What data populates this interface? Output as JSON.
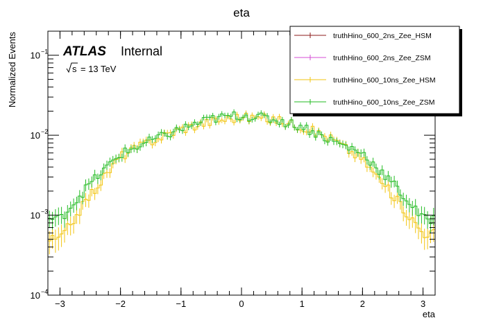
{
  "chart_data": {
    "type": "histogram-step",
    "title": "eta",
    "xlabel": "eta",
    "ylabel": "Normalized Events",
    "xlim": [
      -3.2,
      3.2
    ],
    "ylim": [
      0.0001,
      0.2
    ],
    "yscale": "log",
    "x_ticks": [
      {
        "value": -3,
        "label": "−3"
      },
      {
        "value": -2,
        "label": "−2"
      },
      {
        "value": -1,
        "label": "−1"
      },
      {
        "value": 0,
        "label": "0"
      },
      {
        "value": 1,
        "label": "1"
      },
      {
        "value": 2,
        "label": "2"
      },
      {
        "value": 3,
        "label": "3"
      }
    ],
    "y_ticks": [
      {
        "value": 0.0001,
        "base": "10",
        "exp": "−4"
      },
      {
        "value": 0.001,
        "base": "10",
        "exp": "−3"
      },
      {
        "value": 0.01,
        "base": "10",
        "exp": "−2"
      },
      {
        "value": 0.1,
        "base": "10",
        "exp": "−1"
      }
    ],
    "legend_position": "top-right",
    "annotations": {
      "experiment": "ATLAS",
      "status": "Internal",
      "energy_sqrt": "s",
      "energy_value": "= 13 TeV"
    },
    "grid": false,
    "series": [
      {
        "name": "truthHino_600_2ns_Zee_HSM",
        "color": "#8b1a1a",
        "x": [],
        "y": []
      },
      {
        "name": "truthHino_600_2ns_Zee_ZSM",
        "color": "#d44cd4",
        "x": [],
        "y": []
      },
      {
        "name": "truthHino_600_10ns_Zee_HSM",
        "color": "#f2c40f",
        "x": [
          -3.0,
          -2.5,
          -2.0,
          -1.5,
          -1.0,
          -0.5,
          0.0,
          0.5,
          1.0,
          1.5,
          2.0,
          2.5,
          3.0
        ],
        "y": [
          0.0005,
          0.0018,
          0.0055,
          0.0085,
          0.012,
          0.015,
          0.017,
          0.016,
          0.013,
          0.009,
          0.005,
          0.0018,
          0.0006
        ]
      },
      {
        "name": "truthHino_600_10ns_Zee_ZSM",
        "color": "#22bb22",
        "x": [
          -3.0,
          -2.5,
          -2.0,
          -1.5,
          -1.0,
          -0.5,
          0.0,
          0.5,
          1.0,
          1.5,
          2.0,
          2.5,
          3.0
        ],
        "y": [
          0.0009,
          0.0025,
          0.0058,
          0.0085,
          0.012,
          0.016,
          0.018,
          0.016,
          0.013,
          0.0085,
          0.006,
          0.0025,
          0.0009
        ]
      }
    ]
  }
}
